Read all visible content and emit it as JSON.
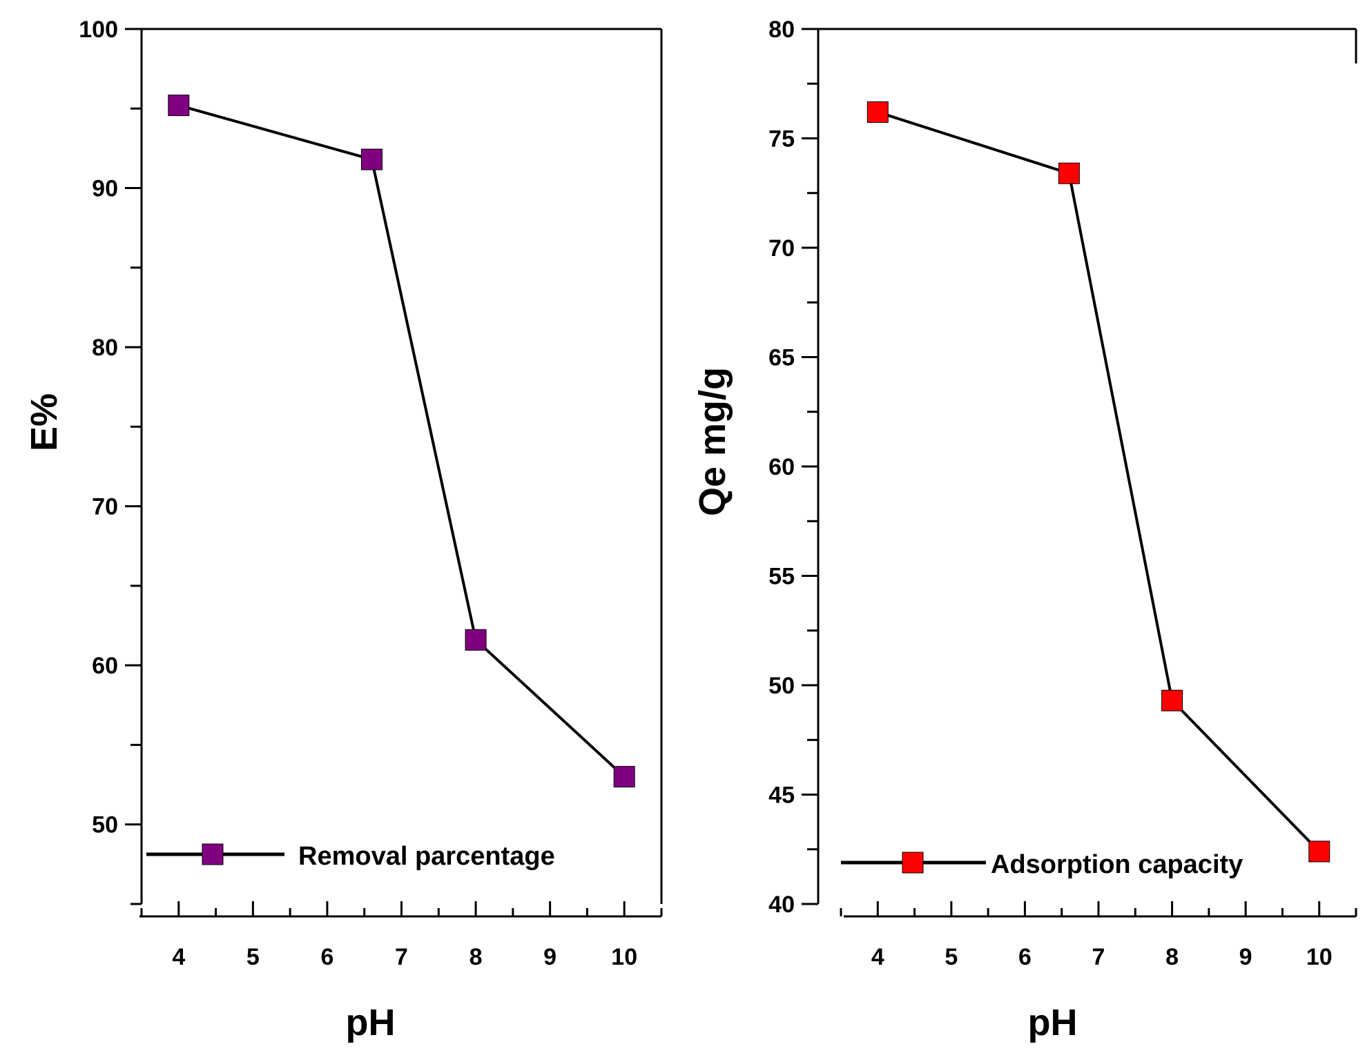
{
  "chart_data": [
    {
      "type": "line",
      "xlabel": "pH",
      "ylabel": "E%",
      "xlim": [
        3.5,
        10.5
      ],
      "ylim": [
        45,
        100
      ],
      "xticks": [
        4,
        5,
        6,
        7,
        8,
        9,
        10
      ],
      "xtick_labels": [
        "4",
        "5",
        "6",
        "7",
        "8",
        "9",
        "10"
      ],
      "yticks": [
        50,
        60,
        70,
        80,
        90,
        100
      ],
      "ytick_labels": [
        "50",
        "60",
        "70",
        "80",
        "90",
        "100"
      ],
      "series": [
        {
          "name": "Removal parcentage",
          "color": "#800080",
          "marker": "square",
          "x": [
            4,
            6.6,
            8,
            10
          ],
          "y": [
            95.2,
            91.8,
            61.6,
            53.0
          ]
        }
      ]
    },
    {
      "type": "line",
      "xlabel": "pH",
      "ylabel": "Qe mg/g",
      "xlim": [
        3.5,
        10.5
      ],
      "ylim": [
        40,
        80
      ],
      "xticks": [
        4,
        5,
        6,
        7,
        8,
        9,
        10
      ],
      "xtick_labels": [
        "4",
        "5",
        "6",
        "7",
        "8",
        "9",
        "10"
      ],
      "yticks": [
        40,
        45,
        50,
        55,
        60,
        65,
        70,
        75,
        80
      ],
      "ytick_labels": [
        "40",
        "45",
        "50",
        "55",
        "60",
        "65",
        "70",
        "75",
        "80"
      ],
      "series": [
        {
          "name": "Adsorption capacity",
          "color": "#ff0000",
          "marker": "square",
          "x": [
            4,
            6.6,
            8,
            10
          ],
          "y": [
            76.2,
            73.4,
            49.3,
            42.4
          ]
        }
      ]
    }
  ]
}
